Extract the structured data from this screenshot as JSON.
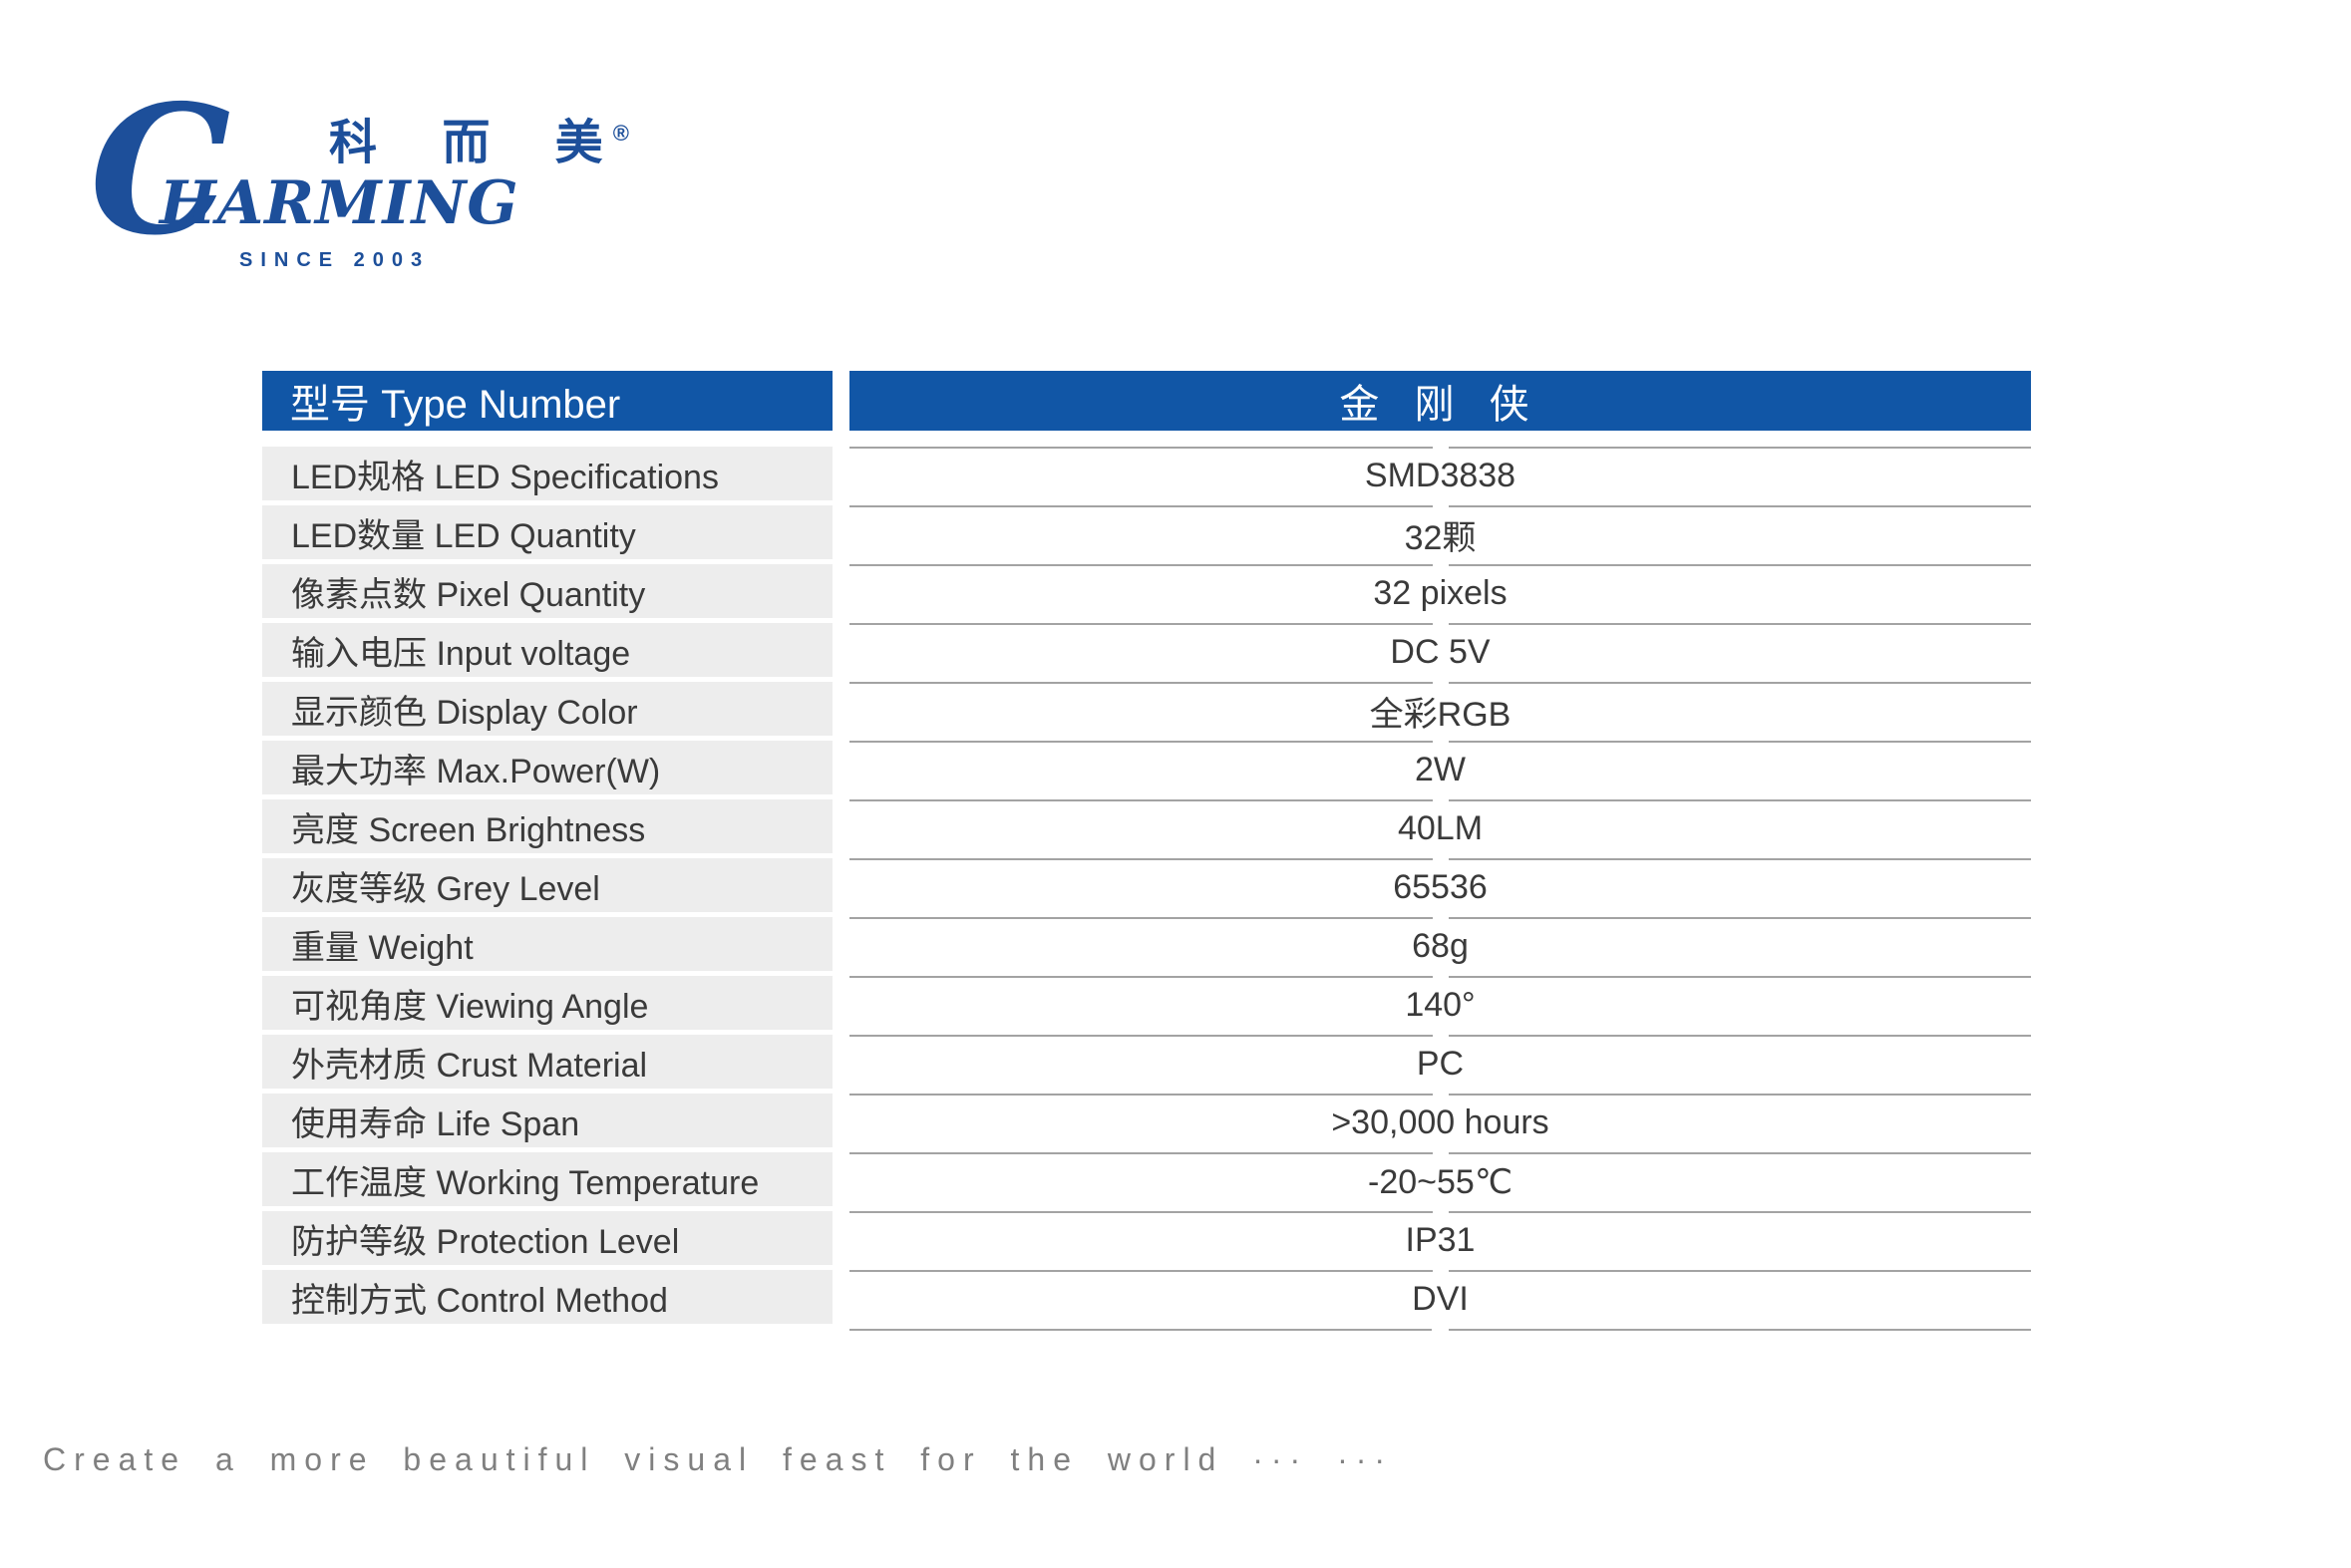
{
  "logo": {
    "brand_initial": "C",
    "brand_name": "HARMING",
    "cn_name": "科 而 美",
    "registered_mark": "®",
    "since": "SINCE 2003"
  },
  "table": {
    "header": {
      "label": "型号 Type Number",
      "value": "金 刚 侠"
    },
    "rows": [
      {
        "label": "LED规格 LED Specifications",
        "value": "SMD3838"
      },
      {
        "label": "LED数量 LED Quantity",
        "value": "32颗"
      },
      {
        "label": "像素点数 Pixel Quantity",
        "value": "32 pixels"
      },
      {
        "label": "输入电压 Input voltage",
        "value": "DC 5V"
      },
      {
        "label": "显示颜色 Display Color",
        "value": "全彩RGB"
      },
      {
        "label": "最大功率 Max.Power(W)",
        "value": "2W"
      },
      {
        "label": "亮度 Screen Brightness",
        "value": "40LM"
      },
      {
        "label": "灰度等级 Grey Level",
        "value": "65536"
      },
      {
        "label": "重量 Weight",
        "value": "68g"
      },
      {
        "label": "可视角度 Viewing Angle",
        "value": "140°"
      },
      {
        "label": "外壳材质 Crust Material",
        "value": "PC"
      },
      {
        "label": "使用寿命 Life Span",
        "value": ">30,000 hours"
      },
      {
        "label": "工作温度 Working Temperature",
        "value": "-20~55℃"
      },
      {
        "label": "防护等级 Protection Level",
        "value": "IP31"
      },
      {
        "label": "控制方式 Control Method",
        "value": "DVI"
      }
    ]
  },
  "footer": {
    "tagline": "Create a more beautiful visual feast for the world ··· ···"
  },
  "colors": {
    "brand_blue": "#1d4f9a",
    "header_blue": "#1156a6",
    "row_gray": "#ededed",
    "line_gray": "#a3a3a3",
    "text_dark": "#3a3a3a",
    "footer_gray": "#808080"
  }
}
